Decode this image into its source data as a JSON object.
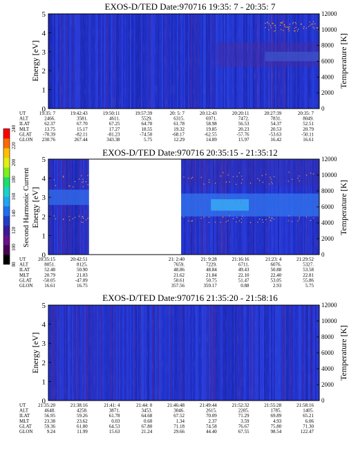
{
  "chart_data": [
    {
      "type": "heatmap",
      "title": "EXOS-D/TED   Date:970716  19:35: 7 - 20:35: 7",
      "ylabel": "Energy [eV]",
      "y2label": "Temperature [K]",
      "ylim": [
        0,
        5
      ],
      "y2lim": [
        0,
        12000
      ],
      "yticks": [
        "0",
        "1",
        "2",
        "3",
        "4",
        "5"
      ],
      "y2ticks": [
        "0",
        "2000",
        "4000",
        "6000",
        "8000",
        "10000",
        "12000"
      ],
      "gaps": [],
      "ephemeris": {
        "labels": [
          "UT",
          "ALT",
          "ILAT",
          "MLT",
          "GLAT",
          "GLON"
        ],
        "columns": [
          [
            "19:35: 7",
            "2466.",
            "62.37",
            "13.75",
            "-70.39",
            "230.76"
          ],
          [
            "19:42:43",
            "3581.",
            "67.70",
            "15.17",
            "-82.11",
            "267.44"
          ],
          [
            "19:50:11",
            "4611.",
            "67.25",
            "17.27",
            "-81.23",
            "343.38"
          ],
          [
            "19:57:39",
            "5529.",
            "64.70",
            "18.55",
            "-74.50",
            "5.75"
          ],
          [
            "20: 5: 7",
            "6315.",
            "61.78",
            "19.32",
            "-68.17",
            "12.29"
          ],
          [
            "20:12:43",
            "6971.",
            "58.98",
            "19.85",
            "-62.55",
            "14.89"
          ],
          [
            "20:20:11",
            "7472.",
            "56.53",
            "20.23",
            "-57.76",
            "15.97"
          ],
          [
            "20:27:39",
            "7831.",
            "54.37",
            "20.53",
            "-53.63",
            "16.42"
          ],
          [
            "20:35: 7",
            "8049.",
            "52.51",
            "20.79",
            "-50.11",
            "16.61"
          ]
        ]
      }
    },
    {
      "type": "heatmap",
      "title": "EXOS-D/TED   Date:970716  20:35:15 - 21:35:12",
      "ylabel": "Energy [eV]",
      "y2label": "Temperature [K]",
      "ylim": [
        0,
        5
      ],
      "y2lim": [
        0,
        12000
      ],
      "yticks": [
        "0",
        "1",
        "2",
        "3",
        "4",
        "5"
      ],
      "y2ticks": [
        "0",
        "2000",
        "4000",
        "6000",
        "8000",
        "10000",
        "12000"
      ],
      "gaps": [
        [
          0.15,
          0.49
        ]
      ],
      "ephemeris": {
        "labels": [
          "UT",
          "ALT",
          "ILAT",
          "MLT",
          "GLAT",
          "GLON"
        ],
        "columns": [
          [
            "20:35:15",
            "8051.",
            "52.48",
            "20.79",
            "-50.05",
            "16.61"
          ],
          [
            "20:42:51",
            "8125.",
            "50.90",
            "21.03",
            "-47.09",
            "16.75"
          ],
          [
            "",
            "",
            "",
            "",
            "",
            ""
          ],
          [
            "",
            "",
            "",
            "",
            "",
            ""
          ],
          [
            "21: 2:40",
            "7659.",
            "48.86",
            "21.62",
            "50.61",
            "357.56"
          ],
          [
            "21: 9:28",
            "7229.",
            "48.84",
            "21.84",
            "50.75",
            "359.17"
          ],
          [
            "21:16:16",
            "6711.",
            "49.43",
            "22.10",
            "51.47",
            "0.88"
          ],
          [
            "21:23: 4",
            "6076.",
            "50.88",
            "22.40",
            "53.05",
            "2.93"
          ],
          [
            "21:29:52",
            "5327.",
            "53.58",
            "22.81",
            "55.86",
            "5.75"
          ]
        ]
      },
      "colorbar": {
        "label": "Second Harmonic Current",
        "ticks": [
          "80",
          "100",
          "120",
          "140",
          "160",
          "180",
          "200",
          "220",
          "240"
        ],
        "colors": [
          "#000000",
          "#4a0055",
          "#6a0f8a",
          "#3a1a9a",
          "#1f3ec8",
          "#1f6ff0",
          "#1fa6f0",
          "#19d2c8",
          "#18e06a",
          "#7ef01a",
          "#e0ee12",
          "#ffc000",
          "#ff6a00",
          "#ff0000"
        ]
      }
    },
    {
      "type": "heatmap",
      "title": "EXOS-D/TED   Date:970716  21:35:20 - 21:58:16",
      "ylabel": "Energy [eV]",
      "y2label": "Temperature [K]",
      "ylim": [
        0,
        5
      ],
      "y2lim": [
        0,
        12000
      ],
      "yticks": [
        "0",
        "1",
        "2",
        "3",
        "4",
        "5"
      ],
      "y2ticks": [
        "0",
        "2000",
        "4000",
        "6000",
        "8000",
        "10000",
        "12000"
      ],
      "gaps": [],
      "ephemeris": {
        "labels": [
          "UT",
          "ALT",
          "ILAT",
          "MLT",
          "GLAT",
          "GLON"
        ],
        "columns": [
          [
            "21:35:20",
            "4648.",
            "56.95",
            "23.38",
            "59.36",
            "9.24"
          ],
          [
            "21:38:16",
            "4258.",
            "59.26",
            "23.62",
            "61.80",
            "11.99"
          ],
          [
            "21:41: 4",
            "3871.",
            "61.78",
            "0.03",
            "64.53",
            "15.63"
          ],
          [
            "21:44: 0",
            "3453.",
            "64.68",
            "0.60",
            "67.80",
            "21.24"
          ],
          [
            "21:46:48",
            "3046.",
            "67.52",
            "1.34",
            "71.18",
            "29.66"
          ],
          [
            "21:49:44",
            "2615.",
            "70.09",
            "2.37",
            "74.58",
            "44.40"
          ],
          [
            "21:52:32",
            "2205.",
            "71.29",
            "3.59",
            "76.67",
            "67.55"
          ],
          [
            "21:55:28",
            "1785.",
            "69.89",
            "4.93",
            "75.80",
            "98.54"
          ],
          [
            "21:58:16",
            "1405.",
            "65.21",
            "6.06",
            "71.30",
            "122.47"
          ]
        ]
      }
    }
  ]
}
